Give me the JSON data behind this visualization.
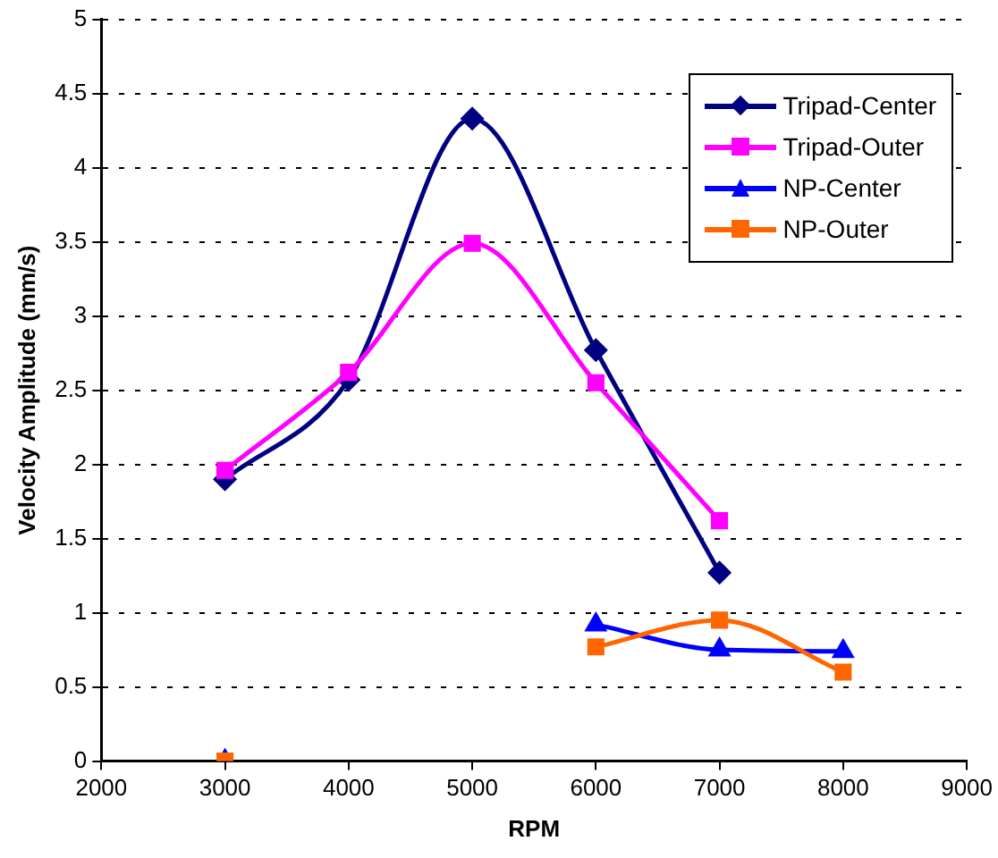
{
  "chart_data": {
    "type": "line",
    "xlabel": "RPM",
    "ylabel": "Velocity Amplitude (mm/s)",
    "xlim": [
      2000,
      9000
    ],
    "xticks": [
      2000,
      3000,
      4000,
      5000,
      6000,
      7000,
      8000,
      9000
    ],
    "ylim": [
      0,
      5
    ],
    "yticks": [
      0,
      0.5,
      1,
      1.5,
      2,
      2.5,
      3,
      3.5,
      4,
      4.5,
      5
    ],
    "grid": "y",
    "legend": "top right",
    "line_style": "solid",
    "x": [
      3000,
      4000,
      5000,
      6000,
      7000,
      8000
    ],
    "series": [
      {
        "name": "Tripad-Center",
        "color": "#000080",
        "marker": "diamond",
        "values": [
          1.9,
          2.57,
          4.33,
          2.77,
          1.27,
          null
        ]
      },
      {
        "name": "Tripad-Outer",
        "color": "#ff00ff",
        "marker": "square",
        "values": [
          1.96,
          2.62,
          3.49,
          2.55,
          1.62,
          null
        ]
      },
      {
        "name": "NP-Center",
        "color": "#0000ff",
        "marker": "triangle",
        "values": [
          0,
          null,
          null,
          0.92,
          0.75,
          0.74
        ]
      },
      {
        "name": "NP-Outer",
        "color": "#ff6600",
        "marker": "square",
        "values": [
          0,
          null,
          null,
          0.77,
          0.95,
          0.6
        ]
      }
    ]
  }
}
